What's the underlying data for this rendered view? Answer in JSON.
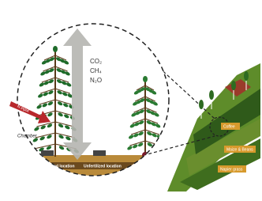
{
  "gases": [
    "CO₂",
    "CH₄",
    "N₂O"
  ],
  "input_label": "N input",
  "chamber_label": "Chamber",
  "locations": [
    "Fertilized location",
    "Unfertilized location"
  ],
  "zones": [
    "Coffee",
    "Maize & Beans",
    "Napier grass"
  ]
}
